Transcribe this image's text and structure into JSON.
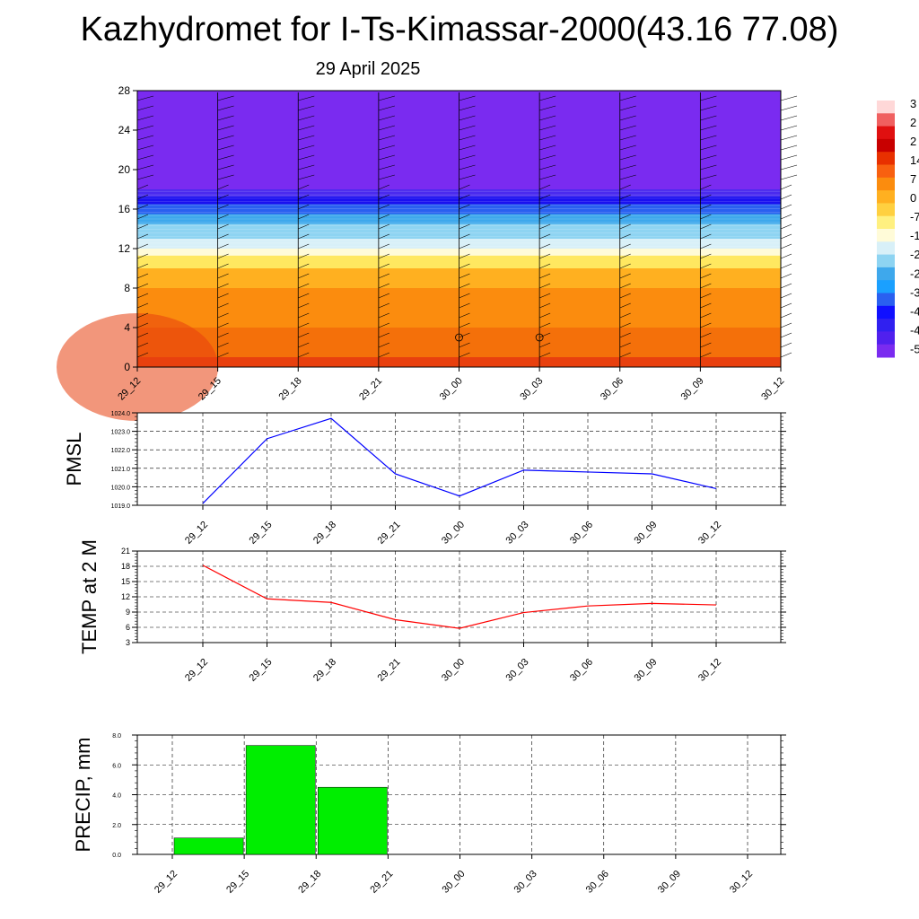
{
  "title": "Kazhydromet for I-Ts-Kimassar-2000(43.16 77.08)",
  "subtitle": "29 April 2025",
  "chart_data": [
    {
      "type": "heatmap",
      "name": "vertical cross-section",
      "x": [
        "29_12",
        "29_15",
        "29_18",
        "29_21",
        "30_00",
        "30_03",
        "30_06",
        "30_09",
        "30_12"
      ],
      "y_ticks": [
        0,
        4,
        8,
        12,
        16,
        20,
        24,
        28
      ],
      "ylim": [
        0,
        28
      ],
      "colorbar_labels": [
        "3",
        "2",
        "2",
        "14",
        "7",
        "0",
        "-7",
        "-1",
        "-2",
        "-2",
        "-3",
        "-4",
        "-4",
        "-5"
      ],
      "bands": [
        {
          "from": 0,
          "to": 1,
          "color": "#e8400e"
        },
        {
          "from": 1,
          "to": 4,
          "color": "#f4700a"
        },
        {
          "from": 4,
          "to": 8,
          "color": "#fb8c0e"
        },
        {
          "from": 8,
          "to": 10,
          "color": "#ffb020"
        },
        {
          "from": 10,
          "to": 11.3,
          "color": "#ffe860"
        },
        {
          "from": 11.3,
          "to": 12,
          "color": "#fffbd8"
        },
        {
          "from": 12,
          "to": 13,
          "color": "#d8f0f8"
        },
        {
          "from": 13,
          "to": 14.5,
          "color": "#8ed4f2"
        },
        {
          "from": 14.5,
          "to": 15.5,
          "color": "#3ea8ec"
        },
        {
          "from": 15.5,
          "to": 16.5,
          "color": "#2a60f0"
        },
        {
          "from": 16.5,
          "to": 17.3,
          "color": "#1a10f0"
        },
        {
          "from": 17.3,
          "to": 18,
          "color": "#4a2aee"
        },
        {
          "from": 18,
          "to": 28,
          "color": "#7a2bf0"
        }
      ]
    },
    {
      "type": "line",
      "ylabel": "PMSL",
      "x": [
        "29_12",
        "29_15",
        "29_18",
        "29_21",
        "30_00",
        "30_03",
        "30_06",
        "30_09",
        "30_12"
      ],
      "ylim": [
        1019.0,
        1024.0
      ],
      "yticks": [
        "1019.0",
        "1020.0",
        "1021.0",
        "1022.0",
        "1023.0",
        "1024.0"
      ],
      "series": [
        {
          "values": [
            1019.1,
            1022.6,
            1023.7,
            1020.7,
            1019.5,
            1020.9,
            1020.8,
            1020.7,
            1019.9
          ],
          "color": "#0000ff"
        }
      ]
    },
    {
      "type": "line",
      "ylabel": "TEMP at 2 M",
      "x": [
        "29_12",
        "29_15",
        "29_18",
        "29_21",
        "30_00",
        "30_03",
        "30_06",
        "30_09",
        "30_12"
      ],
      "ylim": [
        3,
        21
      ],
      "yticks": [
        "3",
        "6",
        "9",
        "12",
        "15",
        "18",
        "21"
      ],
      "series": [
        {
          "values": [
            18.2,
            11.6,
            10.9,
            7.5,
            5.8,
            8.9,
            10.2,
            10.7,
            10.4
          ],
          "color": "#ff0000"
        }
      ]
    },
    {
      "type": "bar",
      "ylabel": "PRECIP, mm",
      "x": [
        "29_12",
        "29_15",
        "29_18",
        "29_21",
        "30_00",
        "30_03",
        "30_06",
        "30_09",
        "30_12"
      ],
      "ylim": [
        0,
        8
      ],
      "yticks": [
        "0.0",
        "2.0",
        "4.0",
        "6.0",
        "8.0"
      ],
      "values": [
        0,
        1.1,
        7.3,
        4.5,
        0,
        0,
        0,
        0,
        0
      ],
      "color": "#00ee00"
    }
  ]
}
